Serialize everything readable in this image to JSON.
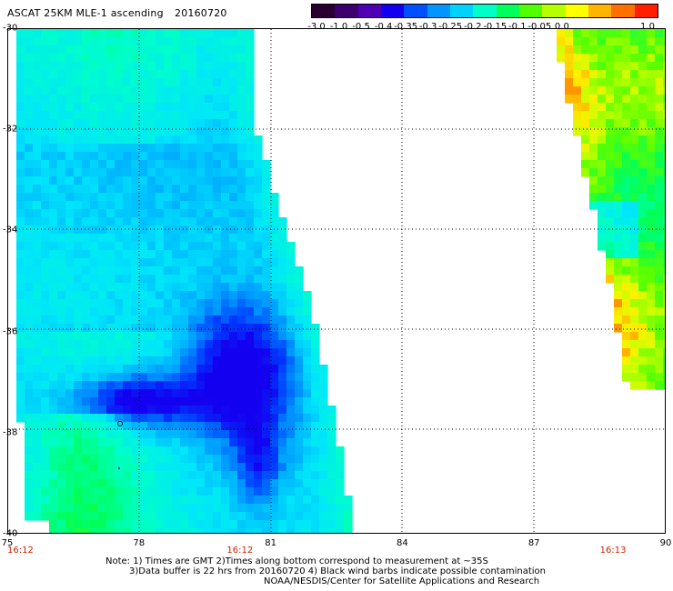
{
  "header": {
    "title": "ASCAT 25KM MLE-1 ascending",
    "date": "20160720"
  },
  "colorbar": {
    "labels": [
      "-3.0",
      "-1.0",
      "-0.5",
      "-0.4",
      "-0.35",
      "-0.3",
      "-0.25",
      "-0.2",
      "-0.15",
      "-0.1",
      "-0.05",
      "0.0",
      "1.0"
    ],
    "colors": [
      "#2a0032",
      "#3c006e",
      "#5000b4",
      "#1400f0",
      "#0050ff",
      "#0096ff",
      "#00d2ff",
      "#00ffc8",
      "#00ff5a",
      "#50ff00",
      "#b4ff00",
      "#ffff00",
      "#ffb400",
      "#ff6e00",
      "#ff1e00"
    ]
  },
  "axes": {
    "lat_labels": [
      "-30",
      "-32",
      "-34",
      "-36",
      "-38",
      "-40"
    ],
    "lon_labels": [
      "75",
      "78",
      "81",
      "84",
      "87",
      "90"
    ],
    "time_labels": [
      {
        "text": "16:12",
        "lon": 75.3
      },
      {
        "text": "16:12",
        "lon": 80.3
      },
      {
        "text": "16:13",
        "lon": 88.8
      }
    ]
  },
  "notes": {
    "line1": "Note: 1) Times are GMT 2)Times along bottom correspond to measurement at ~35S",
    "line2": "3)Data buffer is 22 hrs from 20160720 4) Black wind barbs indicate possible contamination",
    "line3": "NOAA/NESDIS/Center for Satellite Applications and Research"
  }
}
